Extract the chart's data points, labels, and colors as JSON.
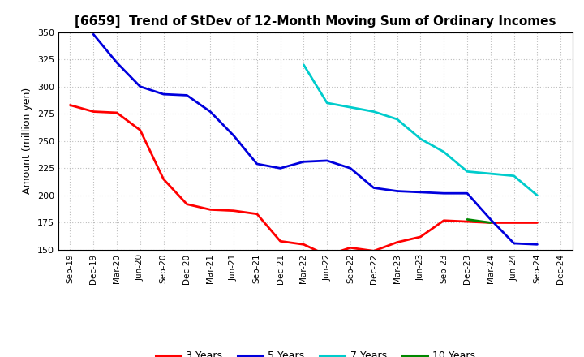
{
  "title": "[6659]  Trend of StDev of 12-Month Moving Sum of Ordinary Incomes",
  "ylabel": "Amount (million yen)",
  "ylim": [
    150,
    350
  ],
  "yticks": [
    150,
    175,
    200,
    225,
    250,
    275,
    300,
    325,
    350
  ],
  "background_color": "#ffffff",
  "grid_color": "#aaaaaa",
  "series": {
    "3 Years": {
      "color": "#ff0000",
      "data": [
        [
          "Sep-19",
          283
        ],
        [
          "Dec-19",
          277
        ],
        [
          "Mar-20",
          276
        ],
        [
          "Jun-20",
          260
        ],
        [
          "Sep-20",
          215
        ],
        [
          "Dec-20",
          192
        ],
        [
          "Mar-21",
          187
        ],
        [
          "Jun-21",
          186
        ],
        [
          "Sep-21",
          183
        ],
        [
          "Dec-21",
          158
        ],
        [
          "Mar-22",
          155
        ],
        [
          "Jun-22",
          145
        ],
        [
          "Sep-22",
          152
        ],
        [
          "Dec-22",
          149
        ],
        [
          "Mar-23",
          157
        ],
        [
          "Jun-23",
          162
        ],
        [
          "Sep-23",
          177
        ],
        [
          "Dec-23",
          176
        ],
        [
          "Mar-24",
          175
        ],
        [
          "Jun-24",
          175
        ],
        [
          "Sep-24",
          175
        ]
      ]
    },
    "5 Years": {
      "color": "#0000dd",
      "data": [
        [
          "Dec-19",
          348
        ],
        [
          "Mar-20",
          322
        ],
        [
          "Jun-20",
          300
        ],
        [
          "Sep-20",
          293
        ],
        [
          "Dec-20",
          292
        ],
        [
          "Mar-21",
          277
        ],
        [
          "Jun-21",
          255
        ],
        [
          "Sep-21",
          229
        ],
        [
          "Dec-21",
          225
        ],
        [
          "Mar-22",
          231
        ],
        [
          "Jun-22",
          232
        ],
        [
          "Sep-22",
          225
        ],
        [
          "Dec-22",
          207
        ],
        [
          "Mar-23",
          204
        ],
        [
          "Jun-23",
          203
        ],
        [
          "Sep-23",
          202
        ],
        [
          "Dec-23",
          202
        ],
        [
          "Mar-24",
          178
        ],
        [
          "Jun-24",
          156
        ],
        [
          "Sep-24",
          155
        ]
      ]
    },
    "7 Years": {
      "color": "#00cccc",
      "data": [
        [
          "Mar-22",
          320
        ],
        [
          "Jun-22",
          285
        ],
        [
          "Sep-22",
          281
        ],
        [
          "Dec-22",
          277
        ],
        [
          "Mar-23",
          270
        ],
        [
          "Jun-23",
          252
        ],
        [
          "Sep-23",
          240
        ],
        [
          "Dec-23",
          222
        ],
        [
          "Mar-24",
          220
        ],
        [
          "Jun-24",
          218
        ],
        [
          "Sep-24",
          200
        ]
      ]
    },
    "10 Years": {
      "color": "#008800",
      "data": [
        [
          "Dec-23",
          178
        ],
        [
          "Mar-24",
          175
        ]
      ]
    }
  },
  "xticks": [
    "Sep-19",
    "Dec-19",
    "Mar-20",
    "Jun-20",
    "Sep-20",
    "Dec-20",
    "Mar-21",
    "Jun-21",
    "Sep-21",
    "Dec-21",
    "Mar-22",
    "Jun-22",
    "Sep-22",
    "Dec-22",
    "Mar-23",
    "Jun-23",
    "Sep-23",
    "Dec-23",
    "Mar-24",
    "Jun-24",
    "Sep-24",
    "Dec-24"
  ],
  "legend_entries": [
    "3 Years",
    "5 Years",
    "7 Years",
    "10 Years"
  ],
  "legend_colors": [
    "#ff0000",
    "#0000dd",
    "#00cccc",
    "#008800"
  ]
}
